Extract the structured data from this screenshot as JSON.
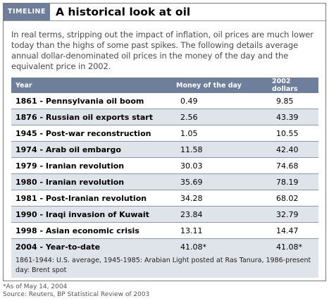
{
  "header": {
    "tag": "TIMELINE",
    "title": "A historical look at oil"
  },
  "intro": "In real terms, stripping out the impact of inflation, oil prices are much lower today than the highs of some past spikes. The following details average annual dollar-denominated oil prices in the money of the day and the equivalent price in 2002.",
  "table": {
    "columns": [
      "Year",
      "Money of the day",
      "2002 dollars"
    ],
    "rows": [
      [
        "1861 - Pennsylvania oil boom",
        "0.49",
        "9.85"
      ],
      [
        "1876 - Russian oil exports start",
        "2.56",
        "43.39"
      ],
      [
        "1945 - Post-war reconstruction",
        "1.05",
        "10.55"
      ],
      [
        "1974 - Arab oil embargo",
        "11.58",
        "42.40"
      ],
      [
        "1979 - Iranian revolution",
        "30.03",
        "74.68"
      ],
      [
        "1980 - Iranian revolution",
        "35.69",
        "78.19"
      ],
      [
        "1981 - Post-Iranian revolution",
        "34.28",
        "68.02"
      ],
      [
        "1990 - Iraqi invasion of Kuwait",
        "23.84",
        "32.79"
      ],
      [
        "1998 - Asian economic crisis",
        "13.11",
        "14.47"
      ],
      [
        "2004 - Year-to-date",
        "41.08*",
        "41.08*"
      ]
    ]
  },
  "note": "1861-1944: U.S. average, 1945-1985: Arabian Light posted at Ras Tanura, 1986-present day: Brent spot",
  "footer": {
    "asof": "*As of May 14, 2004",
    "source": "Source: Reuters, BP Statistical Review of 2003"
  }
}
